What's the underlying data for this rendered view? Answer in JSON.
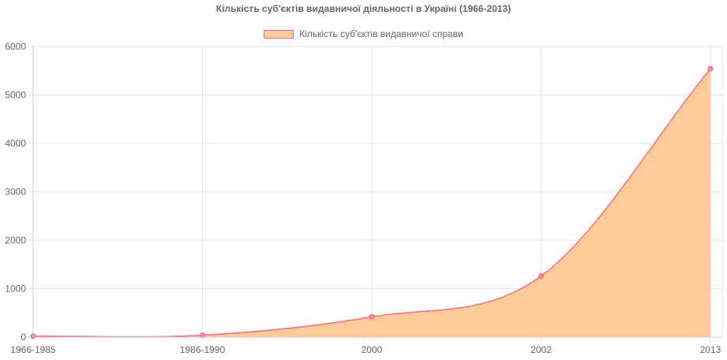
{
  "chart_data": {
    "type": "area",
    "title": "Кількість суб'єктів видавничої діяльності в Україні (1966-2013)",
    "xlabel": "",
    "ylabel": "",
    "categories": [
      "1966-1985",
      "1986-1990",
      "2000",
      "2002",
      "2013"
    ],
    "series": [
      {
        "name": "Кількість суб'єктів видавничої справи",
        "values": [
          20,
          40,
          420,
          1260,
          5540
        ]
      }
    ],
    "ylim": [
      0,
      6000
    ],
    "yticks": [
      0,
      1000,
      2000,
      3000,
      4000,
      5000,
      6000
    ],
    "grid": true,
    "legend_position": "top-center",
    "colors": {
      "fill": "#ffcc99",
      "line": "#ff6b85",
      "point": "#ff6b85",
      "grid": "#e6e6e6",
      "text": "#666666"
    }
  }
}
